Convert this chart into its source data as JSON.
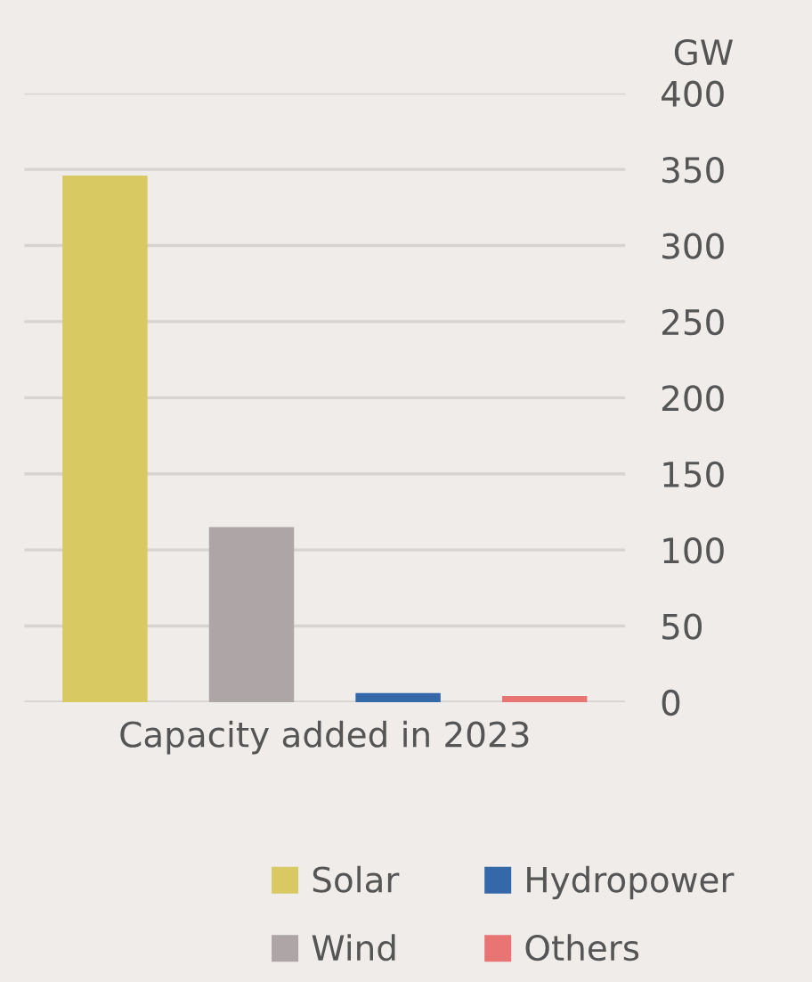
{
  "chart_data": {
    "type": "bar",
    "xlabel": "Capacity added in 2023",
    "ylabel": "GW",
    "categories": [
      null,
      null,
      null,
      null
    ],
    "series": [
      {
        "name": "Solar",
        "color": "#d8c963",
        "values": [
          346,
          null,
          null,
          null
        ]
      },
      {
        "name": "Wind",
        "color": "#aea5a6",
        "values": [
          null,
          115,
          null,
          null
        ]
      },
      {
        "name": "Hydropower",
        "color": "#3568a8",
        "values": [
          null,
          null,
          6,
          null
        ]
      },
      {
        "name": "Others",
        "color": "#e87474",
        "values": [
          null,
          null,
          null,
          4
        ]
      }
    ],
    "ylim": [
      0,
      400
    ],
    "yticks": [
      0,
      50,
      100,
      150,
      200,
      250,
      300,
      350,
      400
    ],
    "grid": "y",
    "legend": "bottom"
  }
}
